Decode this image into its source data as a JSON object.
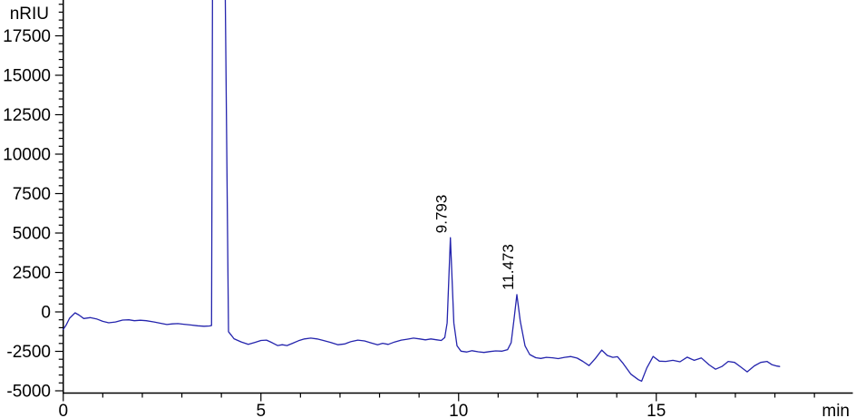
{
  "chart_data": {
    "type": "line",
    "title": "",
    "ylabel": "nRIU",
    "xlabel": "min",
    "xlim": [
      0,
      20
    ],
    "ylim": [
      -5000,
      20000
    ],
    "x_major_ticks": [
      0,
      5,
      10,
      15
    ],
    "x_minor_step": 1,
    "x_max_tick": 19,
    "y_major_step": 2500,
    "y_minor_step": 500,
    "y_tick_labels": [
      "17500",
      "15000",
      "12500",
      "10000",
      "7500",
      "5000",
      "2500",
      "0",
      "-2500",
      "-5000"
    ],
    "grid": false,
    "legend": "none",
    "axis_color": "#000000",
    "peaks": [
      {
        "label": "9.793",
        "retention_time": 9.793,
        "apex_value": 4700
      },
      {
        "label": "11.473",
        "retention_time": 11.473,
        "apex_value": 1100
      }
    ],
    "off_scale_peak": {
      "retention_time_start": 3.78,
      "retention_time_end": 4.08,
      "clipped_at_top": true
    },
    "series": [
      {
        "name": "detector-signal",
        "color": "#2424ad",
        "points": [
          [
            0.0,
            -1100
          ],
          [
            0.07,
            -850
          ],
          [
            0.16,
            -400
          ],
          [
            0.3,
            -60
          ],
          [
            0.4,
            -200
          ],
          [
            0.52,
            -420
          ],
          [
            0.68,
            -360
          ],
          [
            0.84,
            -440
          ],
          [
            1.0,
            -600
          ],
          [
            1.15,
            -690
          ],
          [
            1.32,
            -640
          ],
          [
            1.5,
            -520
          ],
          [
            1.66,
            -500
          ],
          [
            1.8,
            -560
          ],
          [
            1.95,
            -530
          ],
          [
            2.1,
            -560
          ],
          [
            2.3,
            -640
          ],
          [
            2.5,
            -740
          ],
          [
            2.62,
            -800
          ],
          [
            2.76,
            -760
          ],
          [
            2.9,
            -740
          ],
          [
            3.05,
            -780
          ],
          [
            3.22,
            -830
          ],
          [
            3.4,
            -880
          ],
          [
            3.56,
            -910
          ],
          [
            3.7,
            -890
          ],
          [
            3.75,
            -860
          ],
          [
            3.78,
            25000
          ],
          [
            4.08,
            25000
          ],
          [
            4.18,
            -1250
          ],
          [
            4.32,
            -1700
          ],
          [
            4.5,
            -1900
          ],
          [
            4.68,
            -2060
          ],
          [
            4.85,
            -1930
          ],
          [
            5.0,
            -1810
          ],
          [
            5.14,
            -1790
          ],
          [
            5.28,
            -1950
          ],
          [
            5.42,
            -2130
          ],
          [
            5.54,
            -2080
          ],
          [
            5.66,
            -2130
          ],
          [
            5.8,
            -1990
          ],
          [
            5.95,
            -1830
          ],
          [
            6.1,
            -1710
          ],
          [
            6.26,
            -1660
          ],
          [
            6.42,
            -1710
          ],
          [
            6.58,
            -1810
          ],
          [
            6.76,
            -1930
          ],
          [
            6.95,
            -2080
          ],
          [
            7.12,
            -2030
          ],
          [
            7.28,
            -1880
          ],
          [
            7.45,
            -1790
          ],
          [
            7.62,
            -1840
          ],
          [
            7.78,
            -1960
          ],
          [
            7.95,
            -2080
          ],
          [
            8.08,
            -1990
          ],
          [
            8.22,
            -2060
          ],
          [
            8.38,
            -1910
          ],
          [
            8.55,
            -1790
          ],
          [
            8.7,
            -1730
          ],
          [
            8.86,
            -1660
          ],
          [
            9.02,
            -1710
          ],
          [
            9.16,
            -1770
          ],
          [
            9.3,
            -1710
          ],
          [
            9.45,
            -1770
          ],
          [
            9.56,
            -1810
          ],
          [
            9.65,
            -1620
          ],
          [
            9.71,
            -700
          ],
          [
            9.793,
            4700
          ],
          [
            9.88,
            -700
          ],
          [
            9.96,
            -2150
          ],
          [
            10.06,
            -2490
          ],
          [
            10.2,
            -2540
          ],
          [
            10.34,
            -2460
          ],
          [
            10.5,
            -2530
          ],
          [
            10.64,
            -2570
          ],
          [
            10.8,
            -2510
          ],
          [
            10.94,
            -2470
          ],
          [
            11.1,
            -2490
          ],
          [
            11.24,
            -2390
          ],
          [
            11.33,
            -1950
          ],
          [
            11.4,
            -500
          ],
          [
            11.473,
            1100
          ],
          [
            11.56,
            -600
          ],
          [
            11.68,
            -2150
          ],
          [
            11.8,
            -2700
          ],
          [
            11.95,
            -2900
          ],
          [
            12.08,
            -2950
          ],
          [
            12.22,
            -2880
          ],
          [
            12.38,
            -2910
          ],
          [
            12.52,
            -2960
          ],
          [
            12.68,
            -2880
          ],
          [
            12.84,
            -2830
          ],
          [
            13.0,
            -2930
          ],
          [
            13.14,
            -3130
          ],
          [
            13.3,
            -3400
          ],
          [
            13.46,
            -2950
          ],
          [
            13.62,
            -2420
          ],
          [
            13.76,
            -2760
          ],
          [
            13.9,
            -2880
          ],
          [
            14.02,
            -2840
          ],
          [
            14.16,
            -3260
          ],
          [
            14.36,
            -3950
          ],
          [
            14.55,
            -4300
          ],
          [
            14.63,
            -4390
          ],
          [
            14.76,
            -3550
          ],
          [
            14.92,
            -2820
          ],
          [
            15.08,
            -3120
          ],
          [
            15.24,
            -3140
          ],
          [
            15.42,
            -3070
          ],
          [
            15.6,
            -3160
          ],
          [
            15.78,
            -2870
          ],
          [
            15.96,
            -3070
          ],
          [
            16.14,
            -2920
          ],
          [
            16.34,
            -3360
          ],
          [
            16.5,
            -3630
          ],
          [
            16.66,
            -3460
          ],
          [
            16.82,
            -3140
          ],
          [
            16.98,
            -3200
          ],
          [
            17.14,
            -3500
          ],
          [
            17.3,
            -3800
          ],
          [
            17.48,
            -3420
          ],
          [
            17.64,
            -3200
          ],
          [
            17.8,
            -3140
          ],
          [
            17.92,
            -3340
          ],
          [
            18.05,
            -3430
          ],
          [
            18.12,
            -3460
          ]
        ]
      }
    ]
  }
}
